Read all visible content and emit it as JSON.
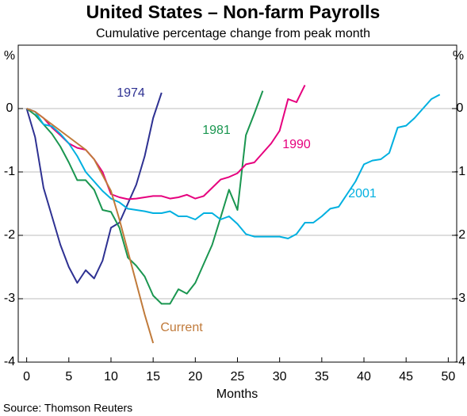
{
  "chart_data": {
    "type": "line",
    "title": "United States – Non-farm Payrolls",
    "subtitle": "Cumulative percentage change from peak month",
    "y_unit_left": "%",
    "y_unit_right": "%",
    "xlabel": "Months",
    "source": "Source: Thomson Reuters",
    "xlim": [
      -1,
      51
    ],
    "xticks": [
      0,
      5,
      10,
      15,
      20,
      25,
      30,
      35,
      40,
      45,
      50
    ],
    "ylim": [
      -4,
      1
    ],
    "yticks": [
      -4,
      -3,
      -2,
      -1,
      0
    ],
    "grid": true,
    "series": [
      {
        "name": "1974",
        "color": "#2e3192",
        "x": [
          0,
          1,
          2,
          3,
          4,
          5,
          6,
          7,
          8,
          9,
          10,
          11,
          12,
          13,
          14,
          15,
          16
        ],
        "values": [
          0,
          -0.45,
          -1.25,
          -1.7,
          -2.15,
          -2.5,
          -2.75,
          -2.55,
          -2.68,
          -2.4,
          -1.88,
          -1.8,
          -1.5,
          -1.2,
          -0.75,
          -0.15,
          0.25
        ]
      },
      {
        "name": "1981",
        "color": "#1a9650",
        "x": [
          0,
          1,
          2,
          3,
          4,
          5,
          6,
          7,
          8,
          9,
          10,
          11,
          12,
          13,
          14,
          15,
          16,
          17,
          18,
          19,
          20,
          21,
          22,
          23,
          24,
          25,
          26,
          27,
          28
        ],
        "values": [
          0,
          -0.1,
          -0.25,
          -0.4,
          -0.6,
          -0.85,
          -1.13,
          -1.13,
          -1.28,
          -1.6,
          -1.63,
          -1.88,
          -2.35,
          -2.48,
          -2.65,
          -2.95,
          -3.08,
          -3.08,
          -2.85,
          -2.92,
          -2.75,
          -2.45,
          -2.15,
          -1.72,
          -1.28,
          -1.6,
          -0.42,
          -0.08,
          0.28
        ]
      },
      {
        "name": "1990",
        "color": "#e6007e",
        "x": [
          0,
          1,
          2,
          3,
          4,
          5,
          6,
          7,
          8,
          9,
          10,
          11,
          12,
          13,
          14,
          15,
          16,
          17,
          18,
          19,
          20,
          21,
          22,
          23,
          24,
          25,
          26,
          27,
          28,
          29,
          30,
          31,
          32,
          33
        ],
        "values": [
          0,
          -0.05,
          -0.15,
          -0.3,
          -0.42,
          -0.55,
          -0.62,
          -0.65,
          -0.8,
          -1.0,
          -1.35,
          -1.4,
          -1.43,
          -1.42,
          -1.4,
          -1.38,
          -1.38,
          -1.42,
          -1.4,
          -1.36,
          -1.42,
          -1.38,
          -1.25,
          -1.12,
          -1.08,
          -1.02,
          -0.88,
          -0.85,
          -0.7,
          -0.55,
          -0.35,
          0.15,
          0.1,
          0.37
        ]
      },
      {
        "name": "2001",
        "color": "#00b0e0",
        "x": [
          0,
          1,
          2,
          3,
          4,
          5,
          6,
          7,
          8,
          9,
          10,
          11,
          12,
          13,
          14,
          15,
          16,
          17,
          18,
          19,
          20,
          21,
          22,
          23,
          24,
          25,
          26,
          27,
          28,
          29,
          30,
          31,
          32,
          33,
          34,
          35,
          36,
          37,
          38,
          39,
          40,
          41,
          42,
          43,
          44,
          45,
          46,
          47,
          48,
          49
        ],
        "values": [
          0,
          -0.05,
          -0.25,
          -0.28,
          -0.4,
          -0.55,
          -0.75,
          -1.0,
          -1.15,
          -1.3,
          -1.42,
          -1.48,
          -1.58,
          -1.6,
          -1.62,
          -1.65,
          -1.65,
          -1.62,
          -1.7,
          -1.7,
          -1.75,
          -1.65,
          -1.65,
          -1.75,
          -1.7,
          -1.82,
          -1.98,
          -2.02,
          -2.02,
          -2.02,
          -2.02,
          -2.05,
          -1.98,
          -1.8,
          -1.8,
          -1.7,
          -1.58,
          -1.55,
          -1.35,
          -1.15,
          -0.88,
          -0.82,
          -0.8,
          -0.7,
          -0.3,
          -0.27,
          -0.15,
          0.0,
          0.15,
          0.22
        ]
      },
      {
        "name": "Current",
        "color": "#c07a3a",
        "x": [
          0,
          1,
          2,
          3,
          4,
          5,
          6,
          7,
          8,
          9,
          10,
          11,
          12,
          13,
          14,
          15
        ],
        "values": [
          0,
          -0.05,
          -0.15,
          -0.25,
          -0.35,
          -0.45,
          -0.55,
          -0.65,
          -0.8,
          -1.05,
          -1.3,
          -1.75,
          -2.25,
          -2.75,
          -3.25,
          -3.7
        ]
      }
    ]
  }
}
